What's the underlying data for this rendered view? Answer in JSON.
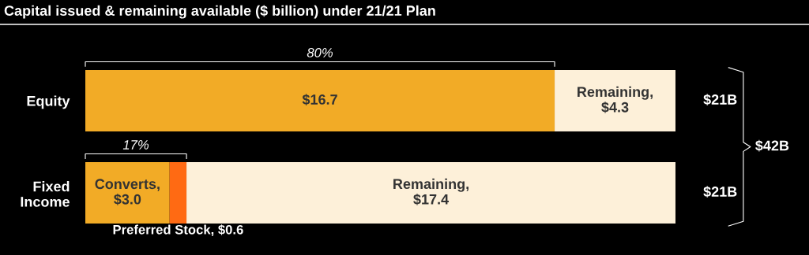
{
  "chart_data": {
    "type": "bar",
    "orientation": "horizontal",
    "stacked": true,
    "title": "Capital issued & remaining available ($ billion) under 21/21 Plan",
    "categories": [
      "Equity",
      "Fixed\nIncome"
    ],
    "series": [
      {
        "color": "#f2ab26",
        "values": [
          16.7,
          3.0
        ],
        "value_labels": [
          "$16.7",
          "Converts,\n$3.0"
        ]
      },
      {
        "color": "#ff6a13",
        "values": [
          null,
          0.6
        ],
        "value_labels": [
          null,
          "Preferred Stock, $0.6"
        ]
      },
      {
        "color": "#fdf0d9",
        "values": [
          4.3,
          17.4
        ],
        "value_labels": [
          "Remaining,\n$4.3",
          "Remaining,\n$17.4"
        ]
      }
    ],
    "totals": [
      "$21B",
      "$21B"
    ],
    "annotations": [
      "80%",
      "17%",
      "$42B"
    ],
    "tick_labels": "y"
  }
}
